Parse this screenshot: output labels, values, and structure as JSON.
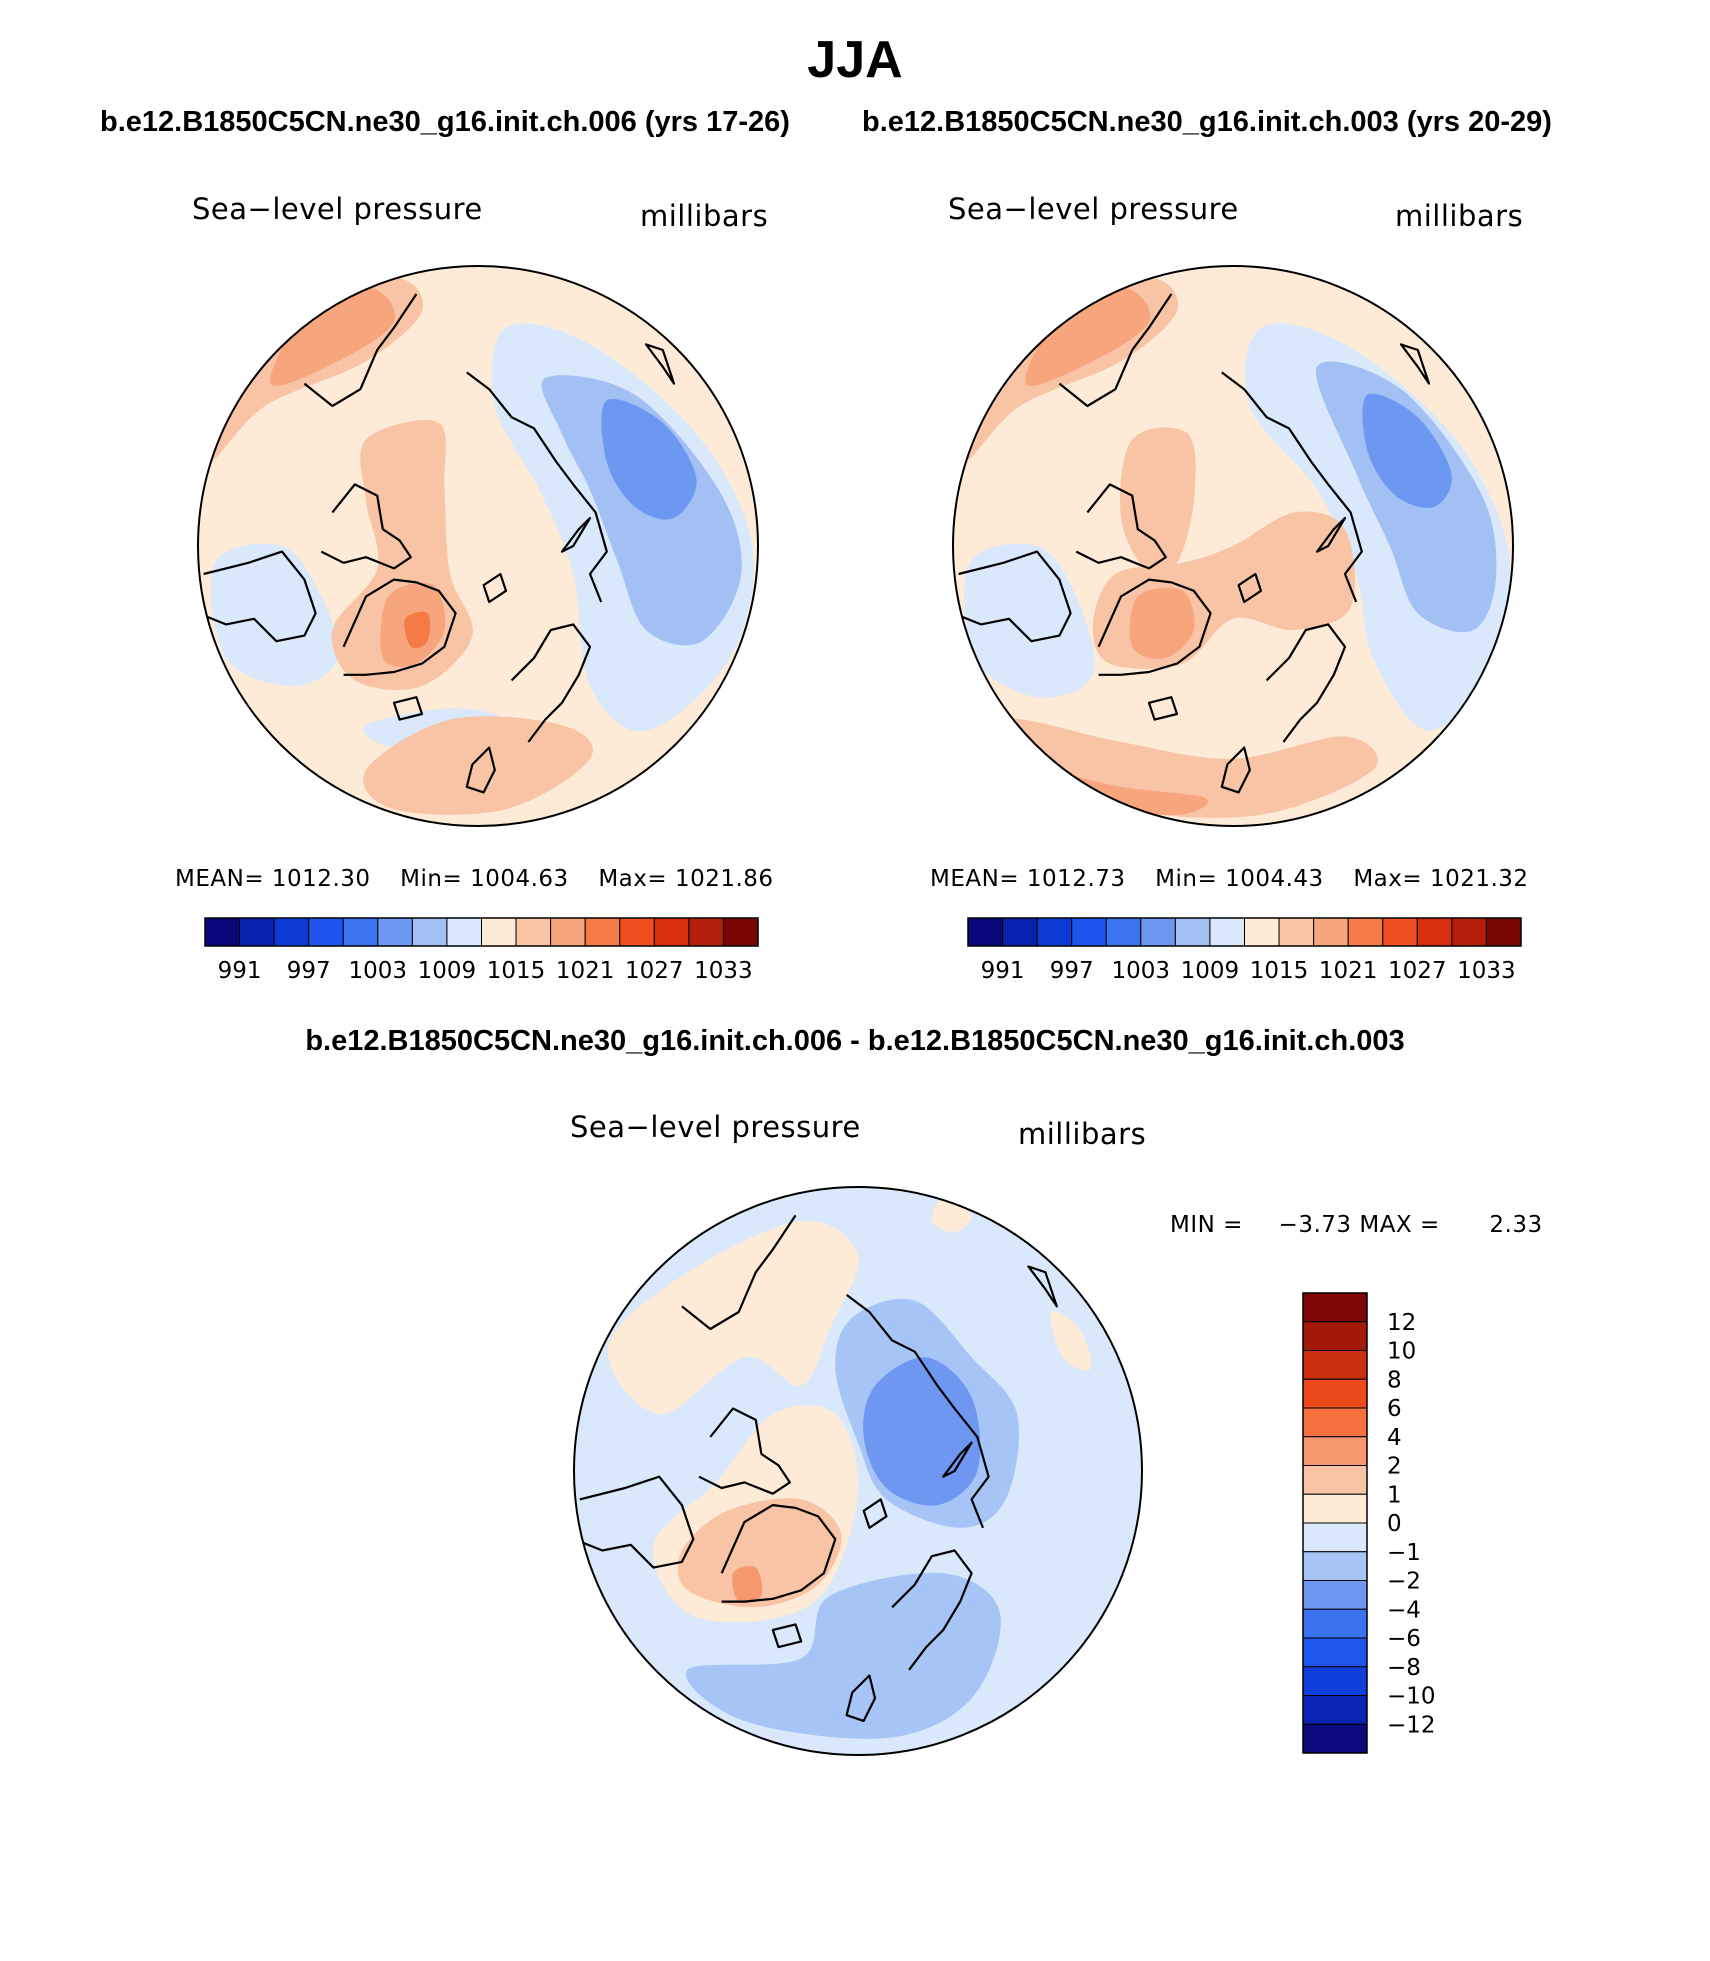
{
  "figure": {
    "season": "JJA",
    "case_a_title": "b.e12.B1850C5CN.ne30_g16.init.ch.006 (yrs 17-26)",
    "case_b_title": "b.e12.B1850C5CN.ne30_g16.init.ch.003 (yrs 20-29)",
    "diff_title": "b.e12.B1850C5CN.ne30_g16.init.ch.006 - b.e12.B1850C5CN.ne30_g16.init.ch.003"
  },
  "chart_data": [
    {
      "type": "heatmap",
      "projection": "north polar stereographic",
      "title": "Sea−level pressure",
      "units": "millibars",
      "stats": {
        "mean_label": "MEAN=",
        "mean": "1012.30",
        "min_label": "Min=",
        "min": "1004.63",
        "max_label": "Max=",
        "max": "1021.86"
      },
      "colorbar": {
        "orientation": "horizontal",
        "levels": [
          991,
          994,
          997,
          1000,
          1003,
          1006,
          1009,
          1012,
          1015,
          1018,
          1021,
          1024,
          1027,
          1030,
          1033
        ],
        "tick_labels": [
          "991",
          "997",
          "1003",
          "1009",
          "1015",
          "1021",
          "1027",
          "1033"
        ]
      }
    },
    {
      "type": "heatmap",
      "projection": "north polar stereographic",
      "title": "Sea−level pressure",
      "units": "millibars",
      "stats": {
        "mean_label": "MEAN=",
        "mean": "1012.73",
        "min_label": "Min=",
        "min": "1004.43",
        "max_label": "Max=",
        "max": "1021.32"
      },
      "colorbar": {
        "orientation": "horizontal",
        "levels": [
          991,
          994,
          997,
          1000,
          1003,
          1006,
          1009,
          1012,
          1015,
          1018,
          1021,
          1024,
          1027,
          1030,
          1033
        ],
        "tick_labels": [
          "991",
          "997",
          "1003",
          "1009",
          "1015",
          "1021",
          "1027",
          "1033"
        ]
      }
    },
    {
      "type": "heatmap",
      "projection": "north polar stereographic",
      "title": "Sea−level pressure",
      "units": "millibars",
      "stats": {
        "min_label": "MIN =",
        "min": "−3.73",
        "max_label": "MAX =",
        "max": "2.33"
      },
      "colorbar": {
        "orientation": "vertical",
        "levels": [
          -12,
          -10,
          -8,
          -6,
          -4,
          -2,
          -1,
          0,
          1,
          2,
          4,
          6,
          8,
          10,
          12
        ],
        "tick_labels": [
          "12",
          "10",
          "8",
          "6",
          "4",
          "2",
          "1",
          "0",
          "−1",
          "−2",
          "−4",
          "−6",
          "−8",
          "−10",
          "−12"
        ]
      }
    }
  ],
  "palettes": {
    "abs": [
      "#08087a",
      "#0a21b0",
      "#0e3bd6",
      "#1f55ee",
      "#3c74f0",
      "#6d98f2",
      "#a3c0f5",
      "#d9e8fb",
      "#fdebd8",
      "#f9c4a6",
      "#f7a57d",
      "#f57a48",
      "#f04d1e",
      "#d8300f",
      "#b41e0b",
      "#7b0505"
    ],
    "diff": [
      "#0a0a7d",
      "#0b23b4",
      "#0f3fdc",
      "#1f57ee",
      "#3b72ef",
      "#6d97f1",
      "#a6c4f6",
      "#d9e8fb",
      "#fdebd8",
      "#f9c4a6",
      "#f79770",
      "#f5713f",
      "#ed4a1b",
      "#c92e0e",
      "#a31a0a",
      "#800505"
    ],
    "coast": "#000000"
  }
}
